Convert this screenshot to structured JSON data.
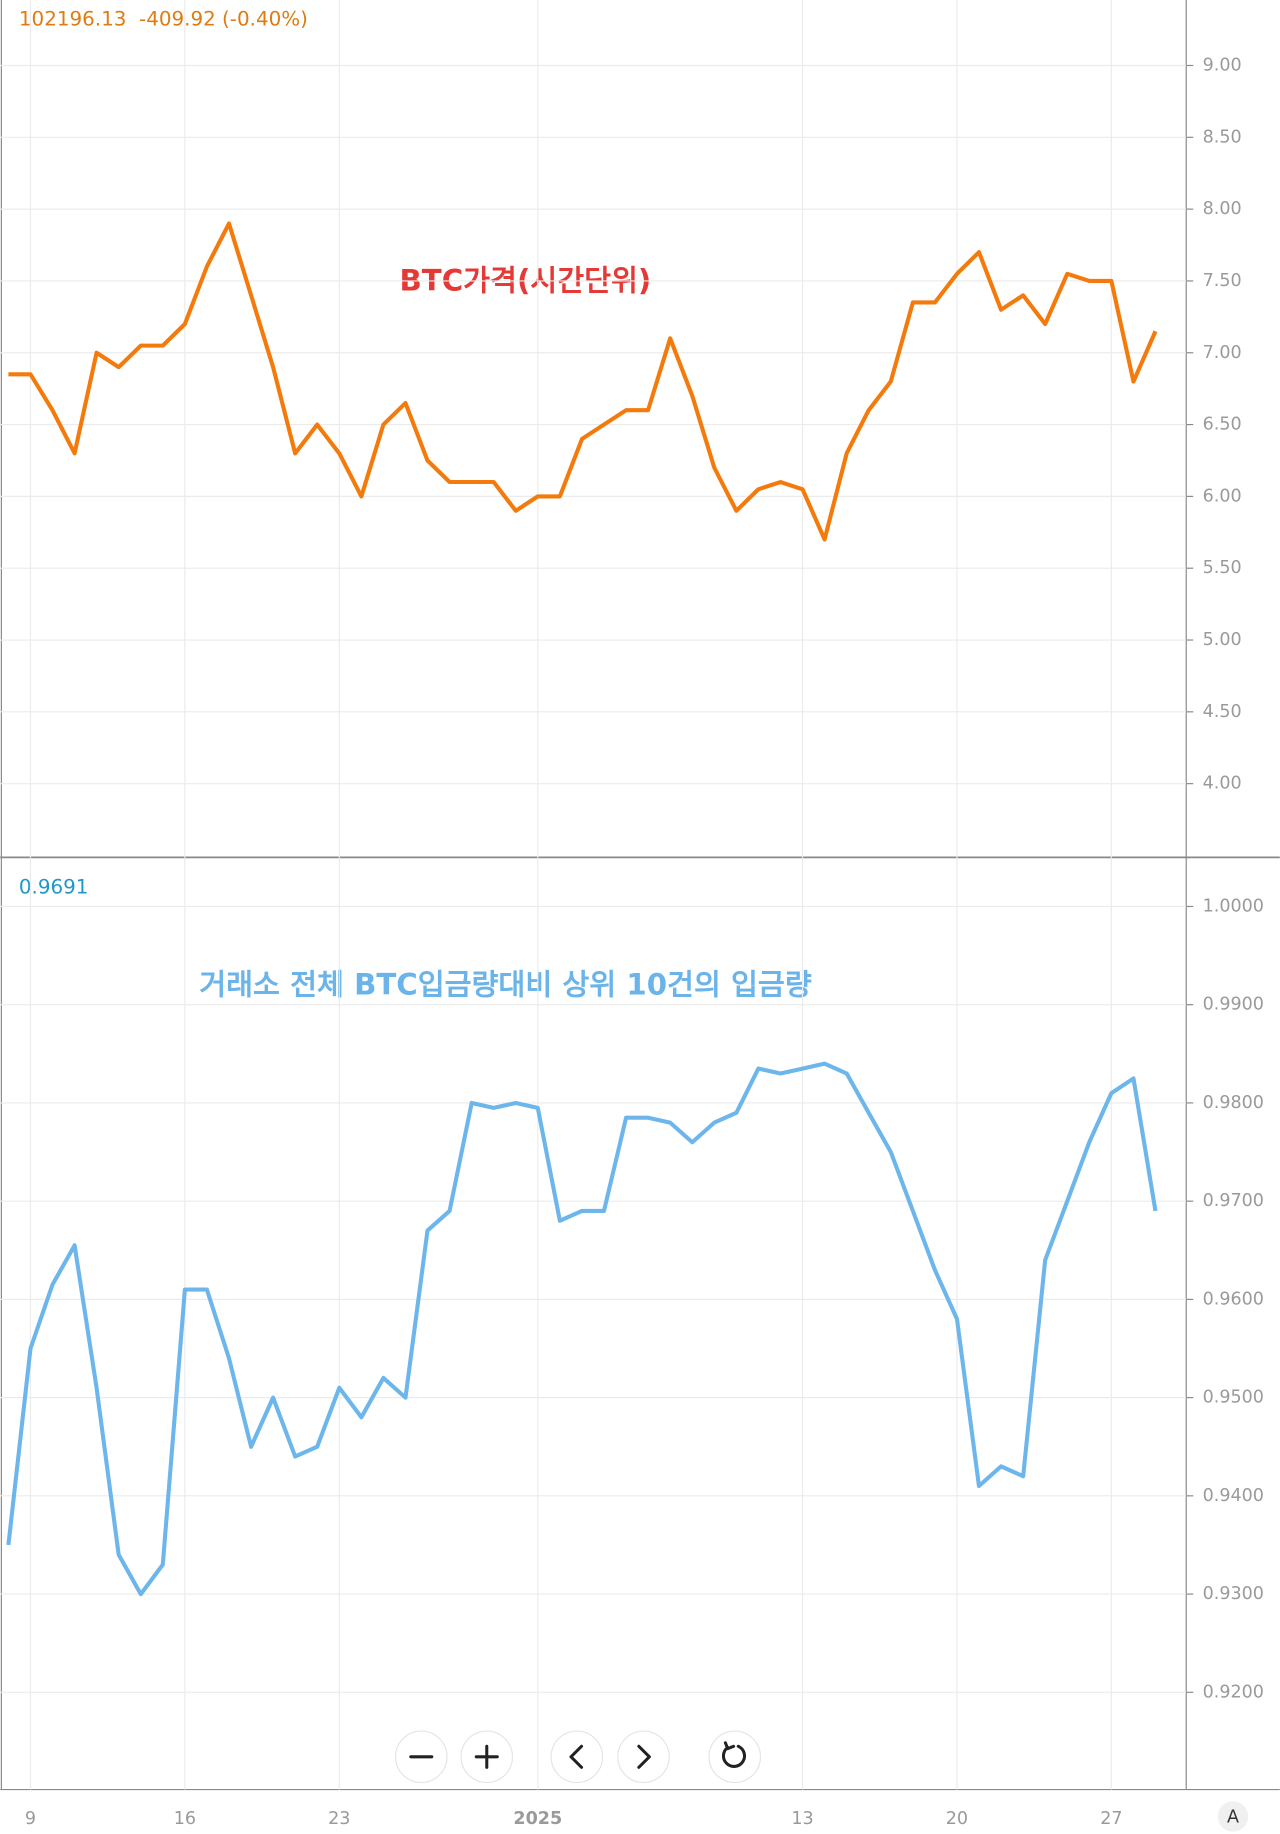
{
  "chart_data": [
    {
      "type": "line",
      "header": "102196.13  -409.92 (-0.40%)",
      "annotation": "BTC가격(시간단위)",
      "categories": [
        null,
        "9",
        null,
        null,
        null,
        null,
        null,
        null,
        "16",
        null,
        null,
        null,
        null,
        null,
        null,
        "23",
        null,
        null,
        null,
        null,
        null,
        null,
        null,
        null,
        "2025",
        null,
        null,
        null,
        null,
        null,
        null,
        null,
        null,
        null,
        null,
        null,
        "13",
        null,
        null,
        null,
        null,
        null,
        null,
        "20",
        null,
        null,
        null,
        null,
        null,
        null,
        "27",
        null,
        null
      ],
      "values": [
        6.85,
        6.85,
        6.6,
        6.3,
        7.0,
        6.9,
        7.05,
        7.05,
        7.2,
        7.6,
        7.9,
        7.4,
        6.9,
        6.3,
        6.5,
        6.3,
        6.0,
        6.5,
        6.65,
        6.25,
        6.1,
        6.1,
        6.1,
        5.9,
        6.0,
        6.0,
        6.4,
        6.5,
        6.6,
        6.6,
        7.1,
        6.7,
        6.2,
        5.9,
        6.05,
        6.1,
        6.05,
        5.7,
        6.3,
        6.6,
        6.8,
        7.35,
        7.35,
        7.55,
        7.7,
        7.3,
        7.4,
        7.2,
        7.55,
        7.5,
        7.5,
        6.8,
        7.15
      ],
      "color": "#f57a0c",
      "ylim": [
        3.487,
        9.456
      ],
      "yticks": [
        {
          "value": 4,
          "label": "4.00"
        },
        {
          "value": 4.5,
          "label": "4.50"
        },
        {
          "value": 5,
          "label": "5.00"
        },
        {
          "value": 5.5,
          "label": "5.50"
        },
        {
          "value": 6,
          "label": "6.00"
        },
        {
          "value": 6.5,
          "label": "6.50"
        },
        {
          "value": 7,
          "label": "7.00"
        },
        {
          "value": 7.5,
          "label": "7.50"
        },
        {
          "value": 8,
          "label": "8.00"
        },
        {
          "value": 8.5,
          "label": "8.50"
        },
        {
          "value": 9,
          "label": "9.00"
        }
      ],
      "grid": true
    },
    {
      "type": "line",
      "header": "0.9691",
      "annotation": "거래소 전체 BTC입금량대비 상위 10건의 입금량",
      "categories": [
        null,
        "9",
        null,
        null,
        null,
        null,
        null,
        null,
        "16",
        null,
        null,
        null,
        null,
        null,
        null,
        "23",
        null,
        null,
        null,
        null,
        null,
        null,
        null,
        null,
        "2025",
        null,
        null,
        null,
        null,
        null,
        null,
        null,
        null,
        null,
        null,
        null,
        "13",
        null,
        null,
        null,
        null,
        null,
        null,
        "20",
        null,
        null,
        null,
        null,
        null,
        null,
        "27",
        null,
        null
      ],
      "values": [
        0.935,
        0.955,
        0.9615,
        0.9655,
        0.951,
        0.934,
        0.93,
        0.933,
        0.961,
        0.961,
        0.954,
        0.945,
        0.95,
        0.944,
        0.945,
        0.951,
        0.948,
        0.952,
        0.95,
        0.967,
        0.969,
        0.98,
        0.9795,
        0.98,
        0.9795,
        0.968,
        0.969,
        0.969,
        0.9785,
        0.9785,
        0.978,
        0.976,
        0.978,
        0.979,
        0.9835,
        0.983,
        0.9835,
        0.984,
        0.983,
        0.979,
        0.975,
        0.969,
        0.963,
        0.958,
        0.941,
        0.943,
        0.942,
        0.964,
        0.97,
        0.976,
        0.981,
        0.9825,
        0.969
      ],
      "color": "#6db6ec",
      "ylim": [
        0.9101,
        1.005
      ],
      "yticks": [
        {
          "value": 0.92,
          "label": "0.9200"
        },
        {
          "value": 0.93,
          "label": "0.9300"
        },
        {
          "value": 0.94,
          "label": "0.9400"
        },
        {
          "value": 0.95,
          "label": "0.9500"
        },
        {
          "value": 0.96,
          "label": "0.9600"
        },
        {
          "value": 0.97,
          "label": "0.9700"
        },
        {
          "value": 0.98,
          "label": "0.9800"
        },
        {
          "value": 0.99,
          "label": "0.9900"
        },
        {
          "value": 1.0,
          "label": "1.0000"
        }
      ],
      "grid": true
    }
  ]
}
